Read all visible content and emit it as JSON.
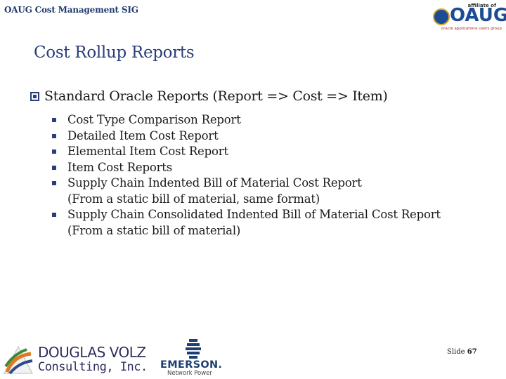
{
  "header": {
    "sig_title": "OAUG Cost Management SIG"
  },
  "logos": {
    "oaug": {
      "affiliate": "affiliate of",
      "mark": "OAUG",
      "tagline": "oracle applications users group"
    },
    "douglas_volz": {
      "name": "DOUGLAS VOLZ",
      "sub": "Consulting, Inc."
    },
    "emerson": {
      "name": "EMERSON.",
      "sub": "Network Power"
    }
  },
  "slide": {
    "title": "Cost Rollup Reports",
    "main_bullet": "Standard Oracle Reports (Report => Cost => Item)",
    "sub_bullets": [
      {
        "line1": "Cost Type Comparison Report",
        "line2": ""
      },
      {
        "line1": "Detailed Item Cost Report",
        "line2": ""
      },
      {
        "line1": "Elemental Item Cost Report",
        "line2": ""
      },
      {
        "line1": "Item Cost Reports",
        "line2": ""
      },
      {
        "line1": "Supply Chain Indented Bill of Material Cost Report",
        "line2": "(From a static bill of material, same format)"
      },
      {
        "line1": "Supply Chain Consolidated Indented Bill of Material Cost Report",
        "line2": "(From a static bill of material)"
      }
    ],
    "slide_label": "Slide",
    "slide_number": "67"
  },
  "colors": {
    "title": "#2a3f7a",
    "oaug_blue": "#1c4d94",
    "oaug_gold": "#d9a521"
  }
}
